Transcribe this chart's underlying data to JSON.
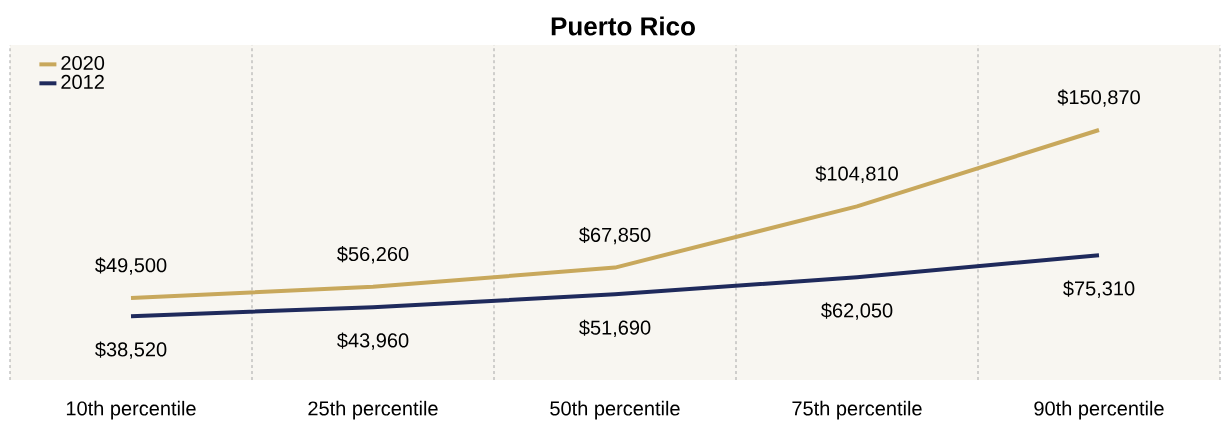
{
  "chart_data": {
    "type": "line",
    "title": "Puerto Rico",
    "categories": [
      "10th percentile",
      "25th percentile",
      "50th percentile",
      "75th percentile",
      "90th percentile"
    ],
    "series": [
      {
        "name": "2020",
        "color": "#c8a85c",
        "values": [
          49500,
          56260,
          67850,
          104810,
          150870
        ],
        "value_labels": [
          "$49,500",
          "$56,260",
          "$67,850",
          "$104,810",
          "$150,870"
        ]
      },
      {
        "name": "2012",
        "color": "#1f2a5c",
        "values": [
          38520,
          43960,
          51690,
          62050,
          75310
        ],
        "value_labels": [
          "$38,520",
          "$43,960",
          "$51,690",
          "$62,050",
          "$75,310"
        ]
      }
    ],
    "grid": "x",
    "legend": "top left"
  }
}
